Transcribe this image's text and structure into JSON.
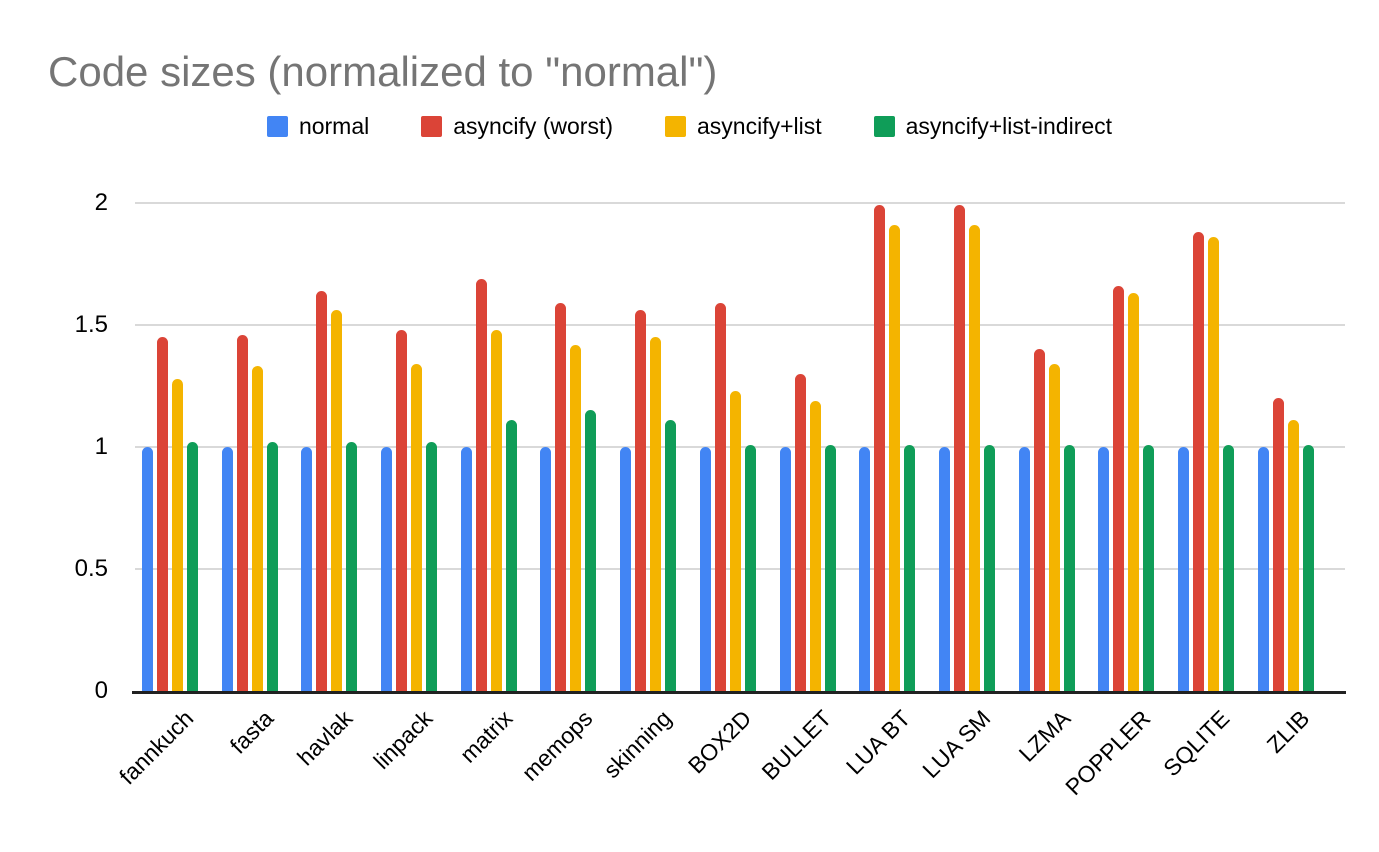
{
  "chart_data": {
    "type": "bar",
    "title": "Code sizes (normalized to \"normal\")",
    "xlabel": "",
    "ylabel": "",
    "categories": [
      "fannkuch",
      "fasta",
      "havlak",
      "linpack",
      "matrix",
      "memops",
      "skinning",
      "BOX2D",
      "BULLET",
      "LUA BT",
      "LUA SM",
      "LZMA",
      "POPPLER",
      "SQLITE",
      "ZLIB"
    ],
    "series": [
      {
        "name": "normal",
        "color": "#4285F4",
        "values": [
          1.0,
          1.0,
          1.0,
          1.0,
          1.0,
          1.0,
          1.0,
          1.0,
          1.0,
          1.0,
          1.0,
          1.0,
          1.0,
          1.0,
          1.0
        ]
      },
      {
        "name": "asyncify (worst)",
        "color": "#DB4437",
        "values": [
          1.45,
          1.46,
          1.64,
          1.48,
          1.69,
          1.59,
          1.56,
          1.59,
          1.3,
          1.99,
          1.99,
          1.4,
          1.66,
          1.88,
          1.2
        ]
      },
      {
        "name": "asyncify+list",
        "color": "#F4B400",
        "values": [
          1.28,
          1.33,
          1.56,
          1.34,
          1.48,
          1.42,
          1.45,
          1.23,
          1.19,
          1.91,
          1.91,
          1.34,
          1.63,
          1.86,
          1.11
        ]
      },
      {
        "name": "asyncify+list-indirect",
        "color": "#0F9D58",
        "values": [
          1.02,
          1.02,
          1.02,
          1.02,
          1.11,
          1.15,
          1.11,
          1.01,
          1.01,
          1.01,
          1.01,
          1.01,
          1.01,
          1.01,
          1.01
        ]
      }
    ],
    "yticks": [
      "0",
      "0.5",
      "1",
      "1.5",
      "2"
    ],
    "ytick_values": [
      0,
      0.5,
      1,
      1.5,
      2
    ],
    "ylim": [
      0,
      2.13
    ],
    "grid": true,
    "legend_position": "top",
    "background": "#ffffff",
    "title_color": "#757575",
    "gridline_color": "#d9d9d9",
    "axis_line_color": "#212121"
  }
}
